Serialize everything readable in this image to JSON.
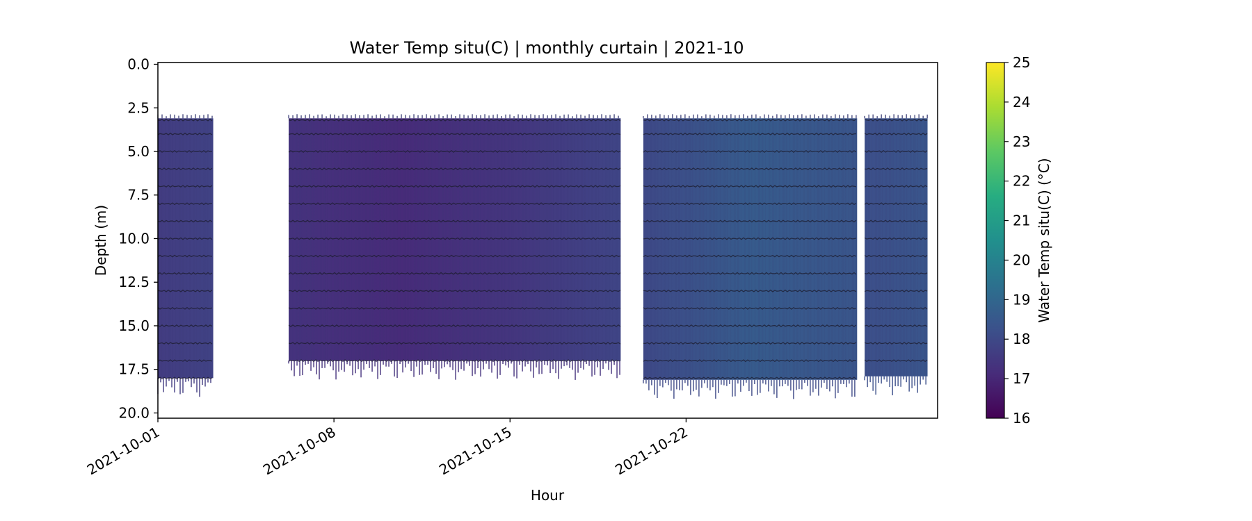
{
  "chart_data": {
    "type": "heatmap",
    "title": "Water Temp situ(C) | monthly curtain | 2021-10",
    "xlabel": "Hour",
    "ylabel": "Depth (m)",
    "x_range": [
      "2021-10-01",
      "2021-11-01"
    ],
    "x_ticks": [
      "2021-10-01",
      "2021-10-08",
      "2021-10-15",
      "2021-10-22"
    ],
    "y_range": [
      20.3,
      -0.1
    ],
    "y_inverted": true,
    "y_ticks": [
      0.0,
      2.5,
      5.0,
      7.5,
      10.0,
      12.5,
      15.0,
      17.5,
      20.0
    ],
    "sensor_depths": [
      3.2,
      4,
      5,
      6,
      7,
      8,
      9,
      10,
      11,
      12,
      13,
      14,
      15,
      16,
      17,
      18
    ],
    "segments": [
      {
        "start": "2021-10-01",
        "end": "2021-10-03.2",
        "top": 3.1,
        "bottom": 18.0,
        "temp": [
          17.6,
          17.8
        ]
      },
      {
        "start": "2021-10-06.2",
        "end": "2021-10-19.4",
        "top": 3.1,
        "bottom": 17.0,
        "temp": [
          17.3,
          17.1,
          17.4,
          17.9
        ]
      },
      {
        "start": "2021-10-20.3",
        "end": "2021-10-28.8",
        "top": 3.1,
        "bottom": 18.1,
        "temp": [
          18.0,
          18.6,
          18.4
        ]
      },
      {
        "start": "2021-10-29.1",
        "end": "2021-10-31.6",
        "top": 3.1,
        "bottom": 17.9,
        "temp": [
          18.2,
          18.4
        ]
      }
    ],
    "colorbar": {
      "label": "Water Temp situ(C) (°C)",
      "min": 16,
      "max": 25,
      "ticks": [
        16,
        17,
        18,
        19,
        20,
        21,
        22,
        23,
        24,
        25
      ],
      "colormap": "viridis"
    },
    "grid": false,
    "legend": "none"
  }
}
